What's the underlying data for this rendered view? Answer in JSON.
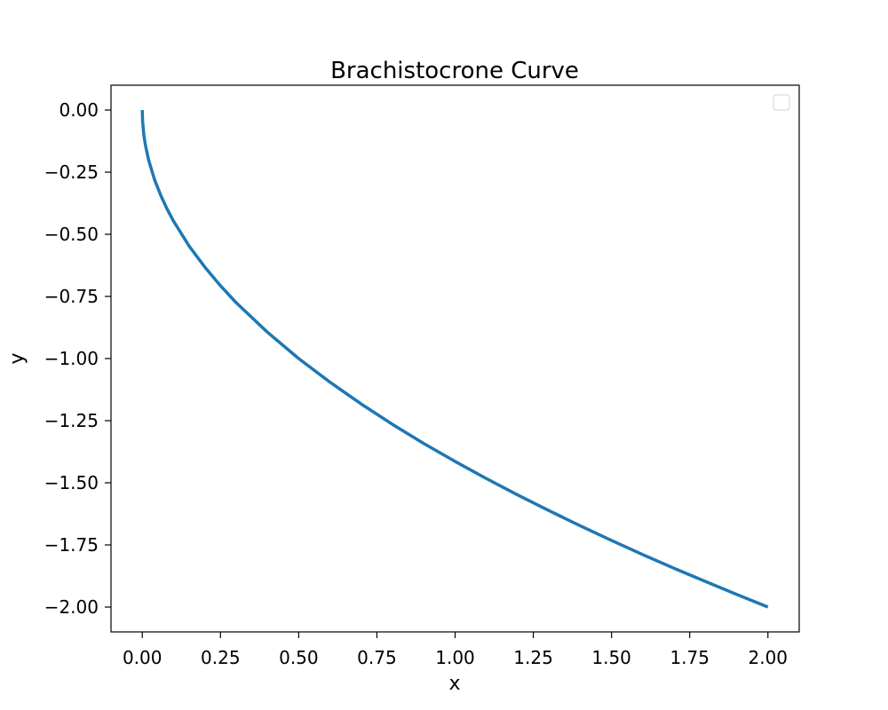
{
  "chart_data": {
    "type": "line",
    "title": "Brachistocrone Curve",
    "xlabel": "x",
    "ylabel": "y",
    "xlim": [
      -0.1,
      2.1
    ],
    "ylim": [
      -2.1,
      0.1
    ],
    "xticks": [
      0.0,
      0.25,
      0.5,
      0.75,
      1.0,
      1.25,
      1.5,
      1.75,
      2.0
    ],
    "xtick_labels": [
      "0.00",
      "0.25",
      "0.50",
      "0.75",
      "1.00",
      "1.25",
      "1.50",
      "1.75",
      "2.00"
    ],
    "yticks": [
      0.0,
      -0.25,
      -0.5,
      -0.75,
      -1.0,
      -1.25,
      -1.5,
      -1.75,
      -2.0
    ],
    "ytick_labels": [
      "0.00",
      "−0.25",
      "−0.50",
      "−0.75",
      "−1.00",
      "−1.25",
      "−1.50",
      "−1.75",
      "−2.00"
    ],
    "grid": false,
    "legend": {
      "placement": "upper-right",
      "entries": []
    },
    "series": [
      {
        "color": "#1f77b4",
        "x": [
          0.0,
          0.001,
          0.005,
          0.01,
          0.02,
          0.04,
          0.06,
          0.08,
          0.1,
          0.15,
          0.2,
          0.25,
          0.3,
          0.4,
          0.5,
          0.6,
          0.7,
          0.8,
          0.9,
          1.0,
          1.1,
          1.2,
          1.3,
          1.4,
          1.5,
          1.6,
          1.7,
          1.8,
          1.9,
          2.0
        ],
        "y": [
          0.0,
          -0.045,
          -0.1,
          -0.141,
          -0.2,
          -0.283,
          -0.346,
          -0.4,
          -0.447,
          -0.548,
          -0.632,
          -0.707,
          -0.775,
          -0.894,
          -1.0,
          -1.095,
          -1.183,
          -1.265,
          -1.342,
          -1.414,
          -1.483,
          -1.549,
          -1.612,
          -1.673,
          -1.732,
          -1.789,
          -1.844,
          -1.897,
          -1.949,
          -2.0
        ]
      }
    ]
  }
}
